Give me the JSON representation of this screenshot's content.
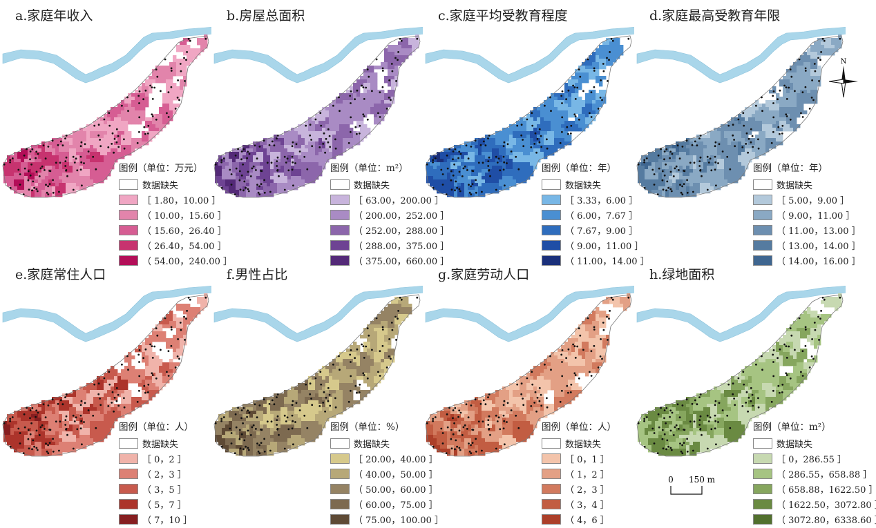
{
  "missing_label": "数据缺失",
  "water_color": "#a9d6ea",
  "panels": [
    {
      "title": "a.家庭年收入",
      "legend_title": "图例（单位：万元）",
      "colors": [
        "#f0a6c3",
        "#e284ab",
        "#d65d93",
        "#c7336f",
        "#b30e58"
      ],
      "classes": [
        "［ 1.80，10.00 ］",
        "（ 10.00，15.60 ］",
        "（ 15.60，26.40 ］",
        "（ 26.40，54.00 ］",
        "（ 54.00，240.00 ］"
      ]
    },
    {
      "title": "b.房屋总面积",
      "legend_title": "图例（单位：m²）",
      "colors": [
        "#c8b4dc",
        "#a98bc4",
        "#8c66ab",
        "#6e4393",
        "#542a78"
      ],
      "classes": [
        "［ 63.00，200.00 ］",
        "（ 200.00，252.00 ］",
        "（ 252.00，288.00 ］",
        "（ 288.00，375.00 ］",
        "（ 375.00，660.00 ］"
      ]
    },
    {
      "title": "c.家庭平均受教育程度",
      "legend_title": "图例（单位：年）",
      "colors": [
        "#78b7e6",
        "#4a8fd2",
        "#2f6dbd",
        "#1f4ea6",
        "#1a2f7a"
      ],
      "classes": [
        "［ 3.33，6.00 ］",
        "（ 6.00，7.67 ］",
        "（ 7.67，9.00 ］",
        "（ 9.00，11.00 ］",
        "（ 11.00，14.00 ］"
      ]
    },
    {
      "title": "d.家庭最高受教育年限",
      "legend_title": "图例（单位：年）",
      "colors": [
        "#b3c9db",
        "#8aa9c4",
        "#6d8fb0",
        "#557ba0",
        "#3f6690"
      ],
      "classes": [
        "［ 5.00，9.00 ］",
        "（ 9.00，11.00 ］",
        "（ 11.00，13.00 ］",
        "（ 13.00，14.00 ］",
        "（ 14.00，16.00 ］"
      ]
    },
    {
      "title": "e.家庭常住人口",
      "legend_title": "图例（单位：人）",
      "colors": [
        "#f0b3aa",
        "#dd8074",
        "#c85a4d",
        "#ac342b",
        "#861e20"
      ],
      "classes": [
        "［ 0，2 ］",
        "（ 2，3 ］",
        "（ 3，5 ］",
        "（ 5，7 ］",
        "（ 7，10 ］"
      ]
    },
    {
      "title": "f.男性占比",
      "legend_title": "图例（单位：%）",
      "colors": [
        "#d6c98c",
        "#b7a878",
        "#958364",
        "#7d6a50",
        "#5e4a35"
      ],
      "classes": [
        "［ 20.00，40.00 ］",
        "（ 40.00，50.00 ］",
        "（ 50.00，60.00 ］",
        "（ 60.00，75.00 ］",
        "（ 75.00，100.00 ］"
      ]
    },
    {
      "title": "g.家庭劳动人口",
      "legend_title": "图例（单位：人）",
      "colors": [
        "#f3c4ab",
        "#e3a085",
        "#d27a5e",
        "#c25d42",
        "#ac3f29"
      ],
      "classes": [
        "［ 0，1 ］",
        "（ 1，2 ］",
        "（ 2，3 ］",
        "（ 3，4 ］",
        "（ 4，6 ］"
      ]
    },
    {
      "title": "h.绿地面积",
      "legend_title": "图例（单位：m²）",
      "colors": [
        "#c7d9b1",
        "#a6c482",
        "#86a65e",
        "#6a8a42",
        "#52702e"
      ],
      "classes": [
        "［ 0，286.55 ］",
        "（ 286.55，658.88 ］",
        "（ 658.88，1622.50 ］",
        "（ 1622.50，3072.80 ］",
        "（ 3072.80，6338.60 ］"
      ]
    }
  ],
  "compass": {
    "label": "N"
  },
  "scale_bar": {
    "zero": "0",
    "length": "150 m"
  }
}
